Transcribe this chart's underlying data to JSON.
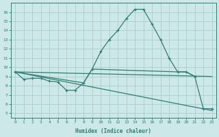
{
  "line1_x": [
    0,
    1,
    2,
    3,
    4,
    5,
    6,
    7,
    8,
    9,
    10,
    11,
    12,
    13,
    14,
    15,
    16,
    17,
    18,
    19,
    20,
    21,
    22,
    23
  ],
  "line1_y": [
    9.5,
    8.7,
    8.8,
    8.8,
    8.5,
    8.4,
    7.5,
    7.5,
    8.3,
    9.8,
    11.7,
    13.0,
    14.0,
    15.3,
    16.3,
    16.3,
    14.7,
    13.0,
    11.0,
    9.5,
    9.5,
    9.0,
    5.5,
    5.5
  ],
  "line2_x": [
    0,
    23
  ],
  "line2_y": [
    9.5,
    9.0
  ],
  "line3_x": [
    0,
    23
  ],
  "line3_y": [
    9.5,
    5.3
  ],
  "line4_x": [
    0,
    8,
    9,
    19,
    20,
    21
  ],
  "line4_y": [
    9.5,
    8.3,
    9.8,
    9.5,
    9.5,
    9.0
  ],
  "color": "#2d7d70",
  "bg_color": "#cce8e8",
  "grid_color": "#aacccc",
  "xlabel": "Humidex (Indice chaleur)",
  "xlim": [
    -0.5,
    23.5
  ],
  "ylim": [
    4.5,
    17.0
  ],
  "yticks": [
    5,
    6,
    7,
    8,
    9,
    10,
    11,
    12,
    13,
    14,
    15,
    16
  ],
  "xticks": [
    0,
    1,
    2,
    3,
    4,
    5,
    6,
    7,
    8,
    9,
    10,
    11,
    12,
    13,
    14,
    15,
    16,
    17,
    18,
    19,
    20,
    21,
    22,
    23
  ]
}
